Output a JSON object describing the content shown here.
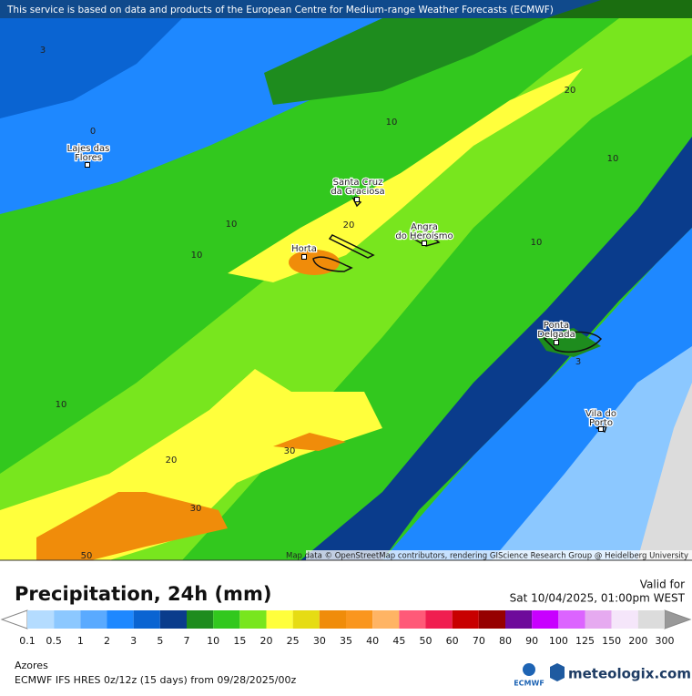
{
  "header": {
    "notice": "This service is based on data and products of the European Centre for Medium-range Weather Forecasts (ECMWF)"
  },
  "map": {
    "places": [
      {
        "lines": [
          "Lajes das",
          "Flores"
        ]
      },
      {
        "lines": [
          "Santa Cruz",
          "da Graciosa"
        ]
      },
      {
        "lines": [
          "Angra",
          "do Heroísmo"
        ]
      },
      {
        "lines": [
          "Horta"
        ]
      },
      {
        "lines": [
          "Ponta",
          "Delgada"
        ]
      },
      {
        "lines": [
          "Vila do",
          "Porto"
        ]
      }
    ],
    "contour_labels": [
      "3",
      "0",
      "20",
      "10",
      "10",
      "10",
      "20",
      "10",
      "10",
      "10",
      "20",
      "30",
      "30",
      "50",
      "3"
    ],
    "attribution": "Map data © OpenStreetMap contributors, rendering GIScience Research Group @ Heidelberg University"
  },
  "legend": {
    "title": "Precipitation, 24h (mm)",
    "valid_label": "Valid for",
    "valid_time": "Sat 10/04/2025, 01:00pm WEST",
    "levels": [
      0.1,
      0.5,
      1,
      2,
      3,
      5,
      7,
      10,
      15,
      20,
      25,
      30,
      35,
      40,
      45,
      50,
      60,
      70,
      80,
      90,
      100,
      125,
      150,
      200,
      300
    ],
    "colors": [
      "#b4dcff",
      "#8cc8ff",
      "#5aaaff",
      "#1e88ff",
      "#0a64d2",
      "#0a3c8c",
      "#1e8c1e",
      "#32c81e",
      "#78e61e",
      "#ffff3c",
      "#e6dc14",
      "#f08c0a",
      "#fa961e",
      "#ffb464",
      "#ff5a78",
      "#f01e50",
      "#c80000",
      "#960000",
      "#6e0a9b",
      "#c800ff",
      "#dc64ff",
      "#e6aaf0",
      "#f5e6fa",
      "#dcdcdc"
    ],
    "under_color": "#ffffff",
    "over_color": "#999999"
  },
  "footer": {
    "region": "Azores",
    "model": "ECMWF IFS HRES 0z/12z (15 days) from  09/28/2025/00z",
    "ecmwf_logo": "ECMWF",
    "brand": "meteologix.com"
  }
}
